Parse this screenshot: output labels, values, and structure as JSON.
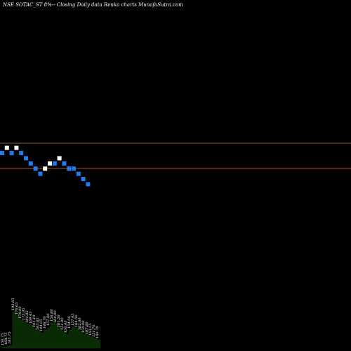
{
  "header": {
    "title": "NSE SOTAC_ST 8%-- Closing Daily data Renko charts MunafaSutra.com"
  },
  "colors": {
    "background": "#000000",
    "up_brick": "#ffffff",
    "down_brick": "#1e7cf0",
    "level_line": "#a0521e",
    "volume_fill": "#0a2a06",
    "volume_edge": "#0e3a0a"
  },
  "chart_data": {
    "type": "renko",
    "bricks": [
      {
        "row": 0,
        "dir": "down"
      },
      {
        "row": 1,
        "dir": "up"
      },
      {
        "row": 0,
        "dir": "down"
      },
      {
        "row": 1,
        "dir": "up"
      },
      {
        "row": 0,
        "dir": "down"
      },
      {
        "row": -1,
        "dir": "down"
      },
      {
        "row": -2,
        "dir": "down"
      },
      {
        "row": -3,
        "dir": "down"
      },
      {
        "row": -4,
        "dir": "down"
      },
      {
        "row": -3,
        "dir": "up"
      },
      {
        "row": -2,
        "dir": "up"
      },
      {
        "row": -2,
        "dir": "down"
      },
      {
        "row": -1,
        "dir": "up"
      },
      {
        "row": -2,
        "dir": "down"
      },
      {
        "row": -3,
        "dir": "down"
      },
      {
        "row": -3,
        "dir": "down"
      },
      {
        "row": -4,
        "dir": "down"
      },
      {
        "row": -5,
        "dir": "down"
      },
      {
        "row": -6,
        "dir": "down"
      }
    ],
    "level_lines": [
      "upper",
      "lower"
    ],
    "volume": {
      "values": [
        2,
        3,
        4,
        52,
        46,
        40,
        38,
        34,
        33,
        28,
        24,
        22,
        26,
        30,
        36,
        34,
        28,
        24,
        20,
        26,
        30,
        28,
        24,
        20,
        18,
        16,
        14,
        12
      ],
      "labels": [
        "156.75",
        "168.75",
        "185.75",
        "193.65",
        "176.65",
        "178.00",
        "175.95",
        "184.85",
        "169.45",
        "161.10",
        "163.65",
        "144.05",
        "148.70",
        "157.00",
        "156.80",
        "164.00",
        "161.50",
        "151.00",
        "150.45",
        "154.50",
        "157.45",
        "164.50",
        "162.00",
        "150.00",
        "167.60",
        "163.55",
        "151.70",
        "160.70"
      ]
    }
  }
}
